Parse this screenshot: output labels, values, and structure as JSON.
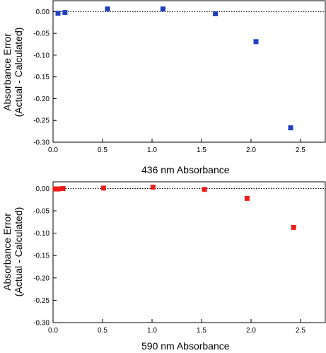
{
  "chart_data": [
    {
      "type": "scatter",
      "ylabel_line1": "Absorbance Error",
      "ylabel_line2": "(Actual - Calculated)",
      "xlabel": "436 nm Absorbance",
      "xlim": [
        0,
        2.75
      ],
      "ylim": [
        -0.3,
        0.025
      ],
      "xticks": [
        "0.0",
        "0.5",
        "1.0",
        "1.5",
        "2.0",
        "2.5"
      ],
      "yticks": [
        "0.00",
        "-0.05",
        "-0.10",
        "-0.15",
        "-0.20",
        "-0.25",
        "-0.30"
      ],
      "zero_line": "dotted",
      "color": "#1f3fbf",
      "points": [
        {
          "x": 0.05,
          "y": -0.004
        },
        {
          "x": 0.12,
          "y": -0.002
        },
        {
          "x": 0.55,
          "y": 0.006
        },
        {
          "x": 1.11,
          "y": 0.006
        },
        {
          "x": 1.64,
          "y": -0.005
        },
        {
          "x": 2.05,
          "y": -0.069
        },
        {
          "x": 2.4,
          "y": -0.267
        }
      ]
    },
    {
      "type": "scatter",
      "ylabel_line1": "Absorbance Error",
      "ylabel_line2": "(Actual - Calculated)",
      "xlabel": "590 nm Absorbance",
      "xlim": [
        0,
        2.75
      ],
      "ylim": [
        -0.3,
        0.015
      ],
      "xticks": [
        "0.0",
        "0.5",
        "1.0",
        "1.5",
        "2.0",
        "2.5"
      ],
      "yticks": [
        "0.00",
        "-0.05",
        "-0.10",
        "-0.15",
        "-0.20",
        "-0.25",
        "-0.30"
      ],
      "zero_line": "dotted",
      "color": "#ee1c1c",
      "points": [
        {
          "x": 0.02,
          "y": -0.001
        },
        {
          "x": 0.05,
          "y": -0.001
        },
        {
          "x": 0.1,
          "y": 0.0
        },
        {
          "x": 0.51,
          "y": 0.001
        },
        {
          "x": 1.01,
          "y": 0.003
        },
        {
          "x": 1.53,
          "y": -0.002
        },
        {
          "x": 1.96,
          "y": -0.022
        },
        {
          "x": 2.43,
          "y": -0.087
        }
      ]
    }
  ]
}
